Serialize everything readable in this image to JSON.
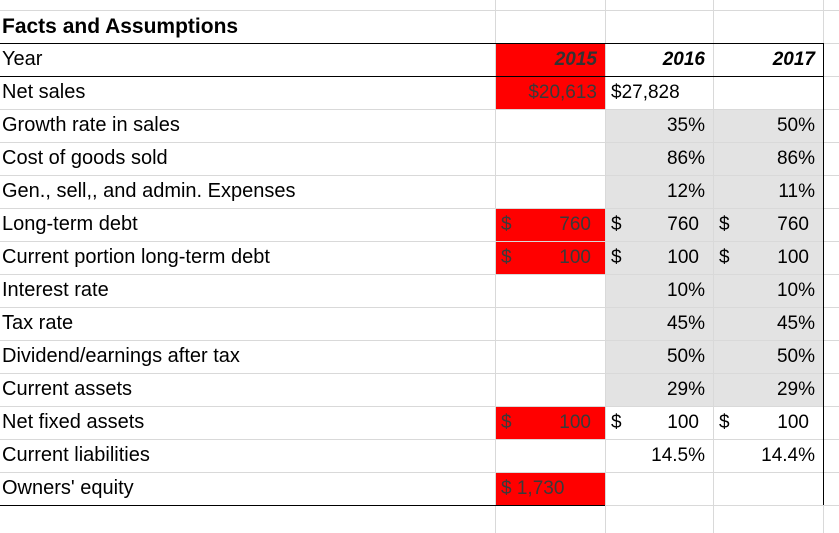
{
  "sheet": {
    "title": "Facts and Assumptions",
    "header": {
      "label": "Year",
      "years": [
        "2015",
        "2016",
        "2017"
      ]
    },
    "rows": [
      {
        "label": "Net sales",
        "cells": [
          "$20,613",
          "$27,828",
          null
        ]
      },
      {
        "label": "Growth rate in sales",
        "cells": [
          null,
          "35%",
          "50%"
        ]
      },
      {
        "label": "Cost of goods sold",
        "cells": [
          null,
          "86%",
          "86%"
        ]
      },
      {
        "label": "Gen., sell,, and admin. Expenses",
        "cells": [
          null,
          "12%",
          "11%"
        ]
      },
      {
        "label": "Long-term debt",
        "cells": [
          {
            "currency": "$",
            "amount": "760"
          },
          {
            "currency": "$",
            "amount": "760"
          },
          {
            "currency": "$",
            "amount": "760"
          }
        ]
      },
      {
        "label": "Current portion long-term debt",
        "cells": [
          {
            "currency": "$",
            "amount": "100"
          },
          {
            "currency": "$",
            "amount": "100"
          },
          {
            "currency": "$",
            "amount": "100"
          }
        ]
      },
      {
        "label": "Interest rate",
        "cells": [
          null,
          "10%",
          "10%"
        ]
      },
      {
        "label": "Tax rate",
        "cells": [
          null,
          "45%",
          "45%"
        ]
      },
      {
        "label": "Dividend/earnings after tax",
        "cells": [
          null,
          "50%",
          "50%"
        ]
      },
      {
        "label": "Current assets",
        "cells": [
          null,
          "29%",
          "29%"
        ]
      },
      {
        "label": "Net fixed assets",
        "cells": [
          {
            "currency": "$",
            "amount": "100"
          },
          {
            "currency": "$",
            "amount": "100"
          },
          {
            "currency": "$",
            "amount": "100"
          }
        ]
      },
      {
        "label": "Current liabilities",
        "cells": [
          null,
          "14.5%",
          "14.4%"
        ]
      },
      {
        "label": "Owners' equity",
        "cells": [
          "$ 1,730",
          null,
          null
        ]
      }
    ]
  }
}
